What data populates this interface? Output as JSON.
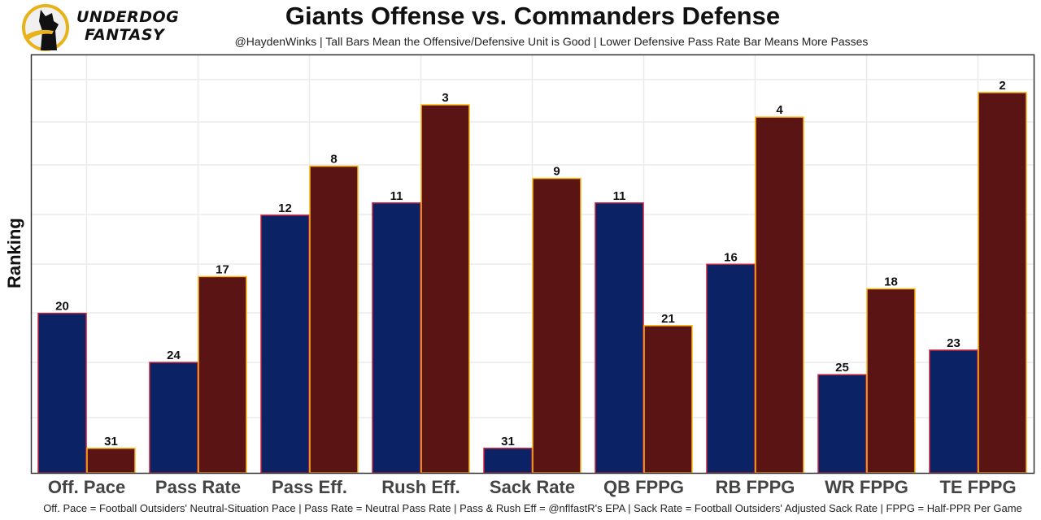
{
  "brand": {
    "line1": "UNDERDOG",
    "line2": "FANTASY",
    "logo_icon": "underdog-dog-logo-icon"
  },
  "chart_data": {
    "type": "bar",
    "title": "Giants Offense vs. Commanders Defense",
    "subtitle": "@HaydenWinks | Tall Bars Mean the Offensive/Defensive Unit is Good | Lower Defensive Pass Rate Bar Means More Passes",
    "xlabel": "",
    "ylabel": "Ranking",
    "caption": "Off. Pace = Football Outsiders' Neutral-Situation Pace | Pass Rate = Neutral Pass Rate | Pass & Rush Eff = @nflfastR's EPA | Sack Rate = Football Outsiders' Adjusted Sack Rate | FPPG = Half-PPR Per Game",
    "categories": [
      "Off. Pace",
      "Pass Rate",
      "Pass Eff.",
      "Rush Eff.",
      "Sack Rate",
      "QB FPPG",
      "RB FPPG",
      "WR FPPG",
      "TE FPPG"
    ],
    "series": [
      {
        "name": "Giants Offense",
        "color": "#0B2265",
        "border": "#C8233A",
        "values": [
          20,
          24,
          12,
          11,
          31,
          11,
          16,
          25,
          23
        ]
      },
      {
        "name": "Commanders Defense",
        "color": "#5A1414",
        "border": "#FFB612",
        "values": [
          31,
          17,
          8,
          3,
          9,
          21,
          4,
          18,
          2
        ]
      }
    ],
    "value_note": "Bar height is inverted rank (rank 1 = tallest); labels show rank",
    "rank_range": [
      1,
      32
    ],
    "grid": true,
    "legend": "none"
  }
}
